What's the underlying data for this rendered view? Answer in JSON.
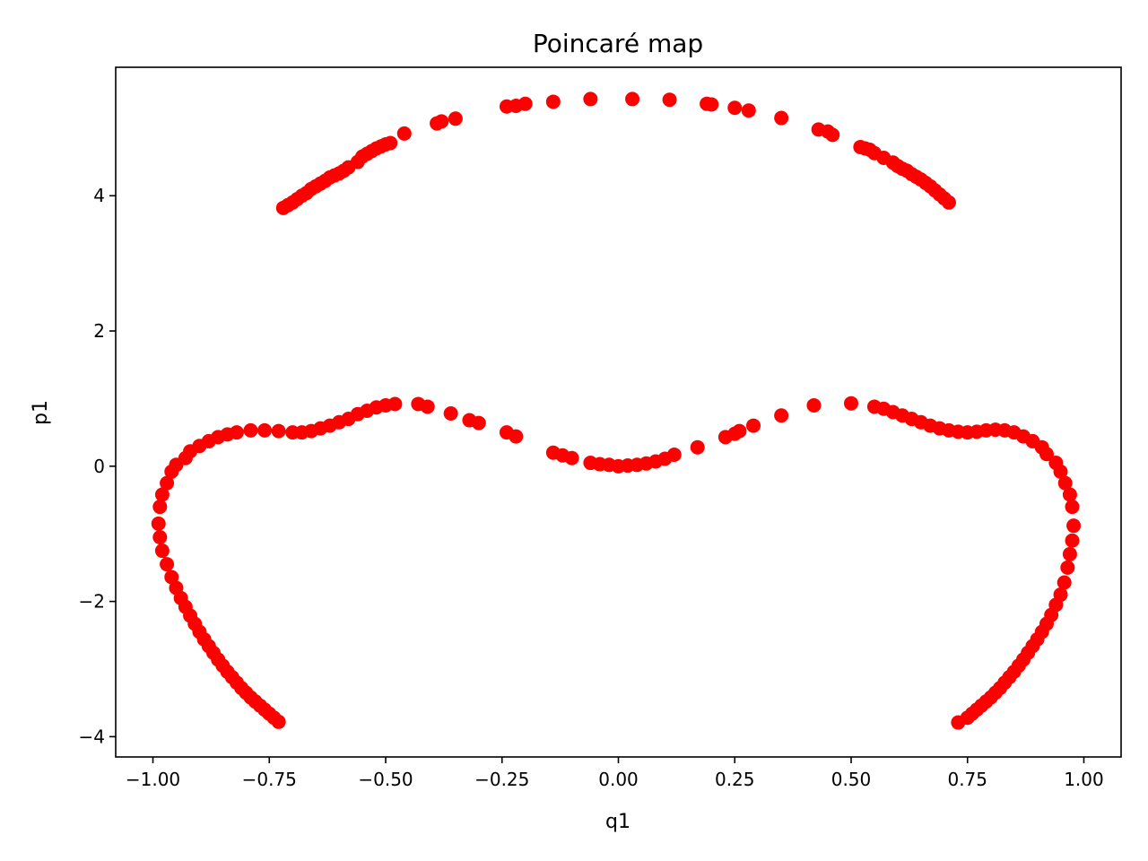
{
  "chart_data": {
    "type": "scatter",
    "title": "Poincaré map",
    "xlabel": "q1",
    "ylabel": "p1",
    "xlim": [
      -1.08,
      1.08
    ],
    "ylim": [
      -4.3,
      5.9
    ],
    "xticks": [
      {
        "value": -1.0,
        "label": "−1.00"
      },
      {
        "value": -0.75,
        "label": "−0.75"
      },
      {
        "value": -0.5,
        "label": "−0.50"
      },
      {
        "value": -0.25,
        "label": "−0.25"
      },
      {
        "value": 0.0,
        "label": "0.00"
      },
      {
        "value": 0.25,
        "label": "0.25"
      },
      {
        "value": 0.5,
        "label": "0.50"
      },
      {
        "value": 0.75,
        "label": "0.75"
      },
      {
        "value": 1.0,
        "label": "1.00"
      }
    ],
    "yticks": [
      {
        "value": -4,
        "label": "−4"
      },
      {
        "value": -2,
        "label": "−2"
      },
      {
        "value": 0,
        "label": "0"
      },
      {
        "value": 2,
        "label": "2"
      },
      {
        "value": 4,
        "label": "4"
      }
    ],
    "grid": false,
    "marker_color": "#ff0000",
    "series": [
      {
        "points": [
          [
            -0.72,
            3.82
          ],
          [
            -0.71,
            3.86
          ],
          [
            -0.7,
            3.9
          ],
          [
            -0.69,
            3.95
          ],
          [
            -0.68,
            4.0
          ],
          [
            -0.67,
            4.04
          ],
          [
            -0.66,
            4.1
          ],
          [
            -0.65,
            4.14
          ],
          [
            -0.64,
            4.18
          ],
          [
            -0.63,
            4.22
          ],
          [
            -0.62,
            4.27
          ],
          [
            -0.61,
            4.3
          ],
          [
            -0.6,
            4.33
          ],
          [
            -0.59,
            4.37
          ],
          [
            -0.58,
            4.42
          ],
          [
            -0.56,
            4.5
          ],
          [
            -0.55,
            4.58
          ],
          [
            -0.54,
            4.62
          ],
          [
            -0.53,
            4.66
          ],
          [
            -0.52,
            4.7
          ],
          [
            -0.51,
            4.73
          ],
          [
            -0.5,
            4.76
          ],
          [
            -0.49,
            4.78
          ],
          [
            -0.46,
            4.92
          ],
          [
            -0.39,
            5.07
          ],
          [
            -0.38,
            5.1
          ],
          [
            -0.35,
            5.14
          ],
          [
            -0.24,
            5.32
          ],
          [
            -0.22,
            5.33
          ],
          [
            -0.2,
            5.36
          ],
          [
            -0.14,
            5.39
          ],
          [
            -0.06,
            5.43
          ],
          [
            0.03,
            5.43
          ],
          [
            0.11,
            5.42
          ],
          [
            0.19,
            5.36
          ],
          [
            0.2,
            5.35
          ],
          [
            0.25,
            5.3
          ],
          [
            0.28,
            5.26
          ],
          [
            0.35,
            5.15
          ],
          [
            0.43,
            4.98
          ],
          [
            0.45,
            4.95
          ],
          [
            0.46,
            4.9
          ],
          [
            0.52,
            4.72
          ],
          [
            0.53,
            4.7
          ],
          [
            0.54,
            4.68
          ],
          [
            0.55,
            4.63
          ],
          [
            0.57,
            4.56
          ],
          [
            0.59,
            4.49
          ],
          [
            0.6,
            4.44
          ],
          [
            0.61,
            4.4
          ],
          [
            0.62,
            4.37
          ],
          [
            0.63,
            4.32
          ],
          [
            0.64,
            4.28
          ],
          [
            0.65,
            4.24
          ],
          [
            0.66,
            4.19
          ],
          [
            0.67,
            4.14
          ],
          [
            0.68,
            4.08
          ],
          [
            0.69,
            4.02
          ],
          [
            0.7,
            3.96
          ],
          [
            0.71,
            3.9
          ]
        ]
      },
      {
        "points": [
          [
            -0.73,
            -3.78
          ],
          [
            -0.74,
            -3.72
          ],
          [
            -0.75,
            -3.66
          ],
          [
            -0.76,
            -3.6
          ],
          [
            -0.77,
            -3.54
          ],
          [
            -0.78,
            -3.48
          ],
          [
            -0.79,
            -3.42
          ],
          [
            -0.8,
            -3.35
          ],
          [
            -0.81,
            -3.28
          ],
          [
            -0.82,
            -3.2
          ],
          [
            -0.83,
            -3.12
          ],
          [
            -0.84,
            -3.04
          ],
          [
            -0.85,
            -2.95
          ],
          [
            -0.86,
            -2.86
          ],
          [
            -0.87,
            -2.76
          ],
          [
            -0.88,
            -2.66
          ],
          [
            -0.89,
            -2.56
          ],
          [
            -0.9,
            -2.45
          ],
          [
            -0.91,
            -2.33
          ],
          [
            -0.92,
            -2.21
          ],
          [
            -0.93,
            -2.08
          ],
          [
            -0.94,
            -1.95
          ],
          [
            -0.95,
            -1.8
          ],
          [
            -0.96,
            -1.64
          ],
          [
            -0.97,
            -1.45
          ],
          [
            -0.98,
            -1.25
          ],
          [
            -0.985,
            -1.05
          ],
          [
            -0.988,
            -0.85
          ],
          [
            -0.985,
            -0.6
          ],
          [
            -0.98,
            -0.42
          ],
          [
            -0.97,
            -0.25
          ],
          [
            -0.96,
            -0.08
          ],
          [
            -0.95,
            0.02
          ],
          [
            -0.93,
            0.12
          ],
          [
            -0.92,
            0.22
          ],
          [
            -0.9,
            0.3
          ],
          [
            -0.88,
            0.37
          ],
          [
            -0.86,
            0.43
          ],
          [
            -0.84,
            0.47
          ],
          [
            -0.82,
            0.5
          ],
          [
            -0.79,
            0.53
          ],
          [
            -0.76,
            0.53
          ],
          [
            -0.73,
            0.52
          ],
          [
            -0.7,
            0.5
          ],
          [
            -0.68,
            0.5
          ],
          [
            -0.66,
            0.52
          ],
          [
            -0.64,
            0.56
          ],
          [
            -0.62,
            0.6
          ],
          [
            -0.6,
            0.65
          ],
          [
            -0.58,
            0.7
          ],
          [
            -0.56,
            0.77
          ],
          [
            -0.54,
            0.82
          ],
          [
            -0.52,
            0.87
          ],
          [
            -0.5,
            0.9
          ],
          [
            -0.48,
            0.92
          ],
          [
            -0.43,
            0.92
          ],
          [
            -0.41,
            0.88
          ],
          [
            -0.36,
            0.78
          ],
          [
            -0.32,
            0.68
          ],
          [
            -0.3,
            0.64
          ],
          [
            -0.24,
            0.5
          ],
          [
            -0.22,
            0.44
          ],
          [
            -0.14,
            0.2
          ],
          [
            -0.12,
            0.16
          ],
          [
            -0.1,
            0.12
          ],
          [
            -0.06,
            0.05
          ],
          [
            -0.04,
            0.03
          ],
          [
            -0.02,
            0.02
          ],
          [
            0.0,
            0.0
          ],
          [
            0.02,
            0.01
          ],
          [
            0.04,
            0.02
          ],
          [
            0.06,
            0.04
          ],
          [
            0.08,
            0.07
          ],
          [
            0.1,
            0.11
          ],
          [
            0.12,
            0.17
          ],
          [
            0.17,
            0.28
          ],
          [
            0.23,
            0.43
          ],
          [
            0.25,
            0.48
          ],
          [
            0.26,
            0.52
          ],
          [
            0.29,
            0.6
          ],
          [
            0.35,
            0.75
          ],
          [
            0.42,
            0.9
          ],
          [
            0.5,
            0.93
          ],
          [
            0.55,
            0.88
          ],
          [
            0.57,
            0.85
          ],
          [
            0.59,
            0.8
          ],
          [
            0.61,
            0.75
          ],
          [
            0.63,
            0.7
          ],
          [
            0.65,
            0.65
          ],
          [
            0.67,
            0.6
          ],
          [
            0.69,
            0.56
          ],
          [
            0.71,
            0.53
          ],
          [
            0.73,
            0.51
          ],
          [
            0.75,
            0.5
          ],
          [
            0.77,
            0.51
          ],
          [
            0.79,
            0.53
          ],
          [
            0.81,
            0.54
          ],
          [
            0.83,
            0.53
          ],
          [
            0.85,
            0.5
          ],
          [
            0.87,
            0.44
          ],
          [
            0.89,
            0.37
          ],
          [
            0.91,
            0.28
          ],
          [
            0.92,
            0.18
          ],
          [
            0.94,
            0.05
          ],
          [
            0.95,
            -0.08
          ],
          [
            0.96,
            -0.25
          ],
          [
            0.97,
            -0.42
          ],
          [
            0.975,
            -0.6
          ],
          [
            0.978,
            -0.88
          ],
          [
            0.975,
            -1.1
          ],
          [
            0.97,
            -1.3
          ],
          [
            0.965,
            -1.5
          ],
          [
            0.958,
            -1.72
          ],
          [
            0.95,
            -1.9
          ],
          [
            0.94,
            -2.05
          ],
          [
            0.93,
            -2.2
          ],
          [
            0.92,
            -2.33
          ],
          [
            0.91,
            -2.45
          ],
          [
            0.9,
            -2.56
          ],
          [
            0.89,
            -2.66
          ],
          [
            0.88,
            -2.76
          ],
          [
            0.87,
            -2.86
          ],
          [
            0.86,
            -2.95
          ],
          [
            0.85,
            -3.04
          ],
          [
            0.84,
            -3.12
          ],
          [
            0.83,
            -3.2
          ],
          [
            0.82,
            -3.28
          ],
          [
            0.81,
            -3.35
          ],
          [
            0.8,
            -3.42
          ],
          [
            0.79,
            -3.48
          ],
          [
            0.78,
            -3.54
          ],
          [
            0.77,
            -3.6
          ],
          [
            0.76,
            -3.66
          ],
          [
            0.75,
            -3.72
          ],
          [
            0.73,
            -3.79
          ]
        ]
      }
    ]
  }
}
